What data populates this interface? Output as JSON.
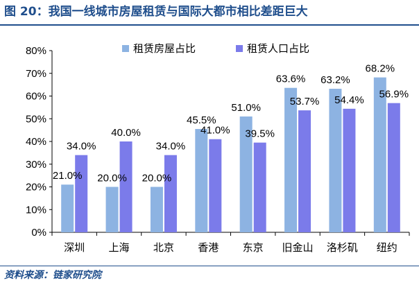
{
  "header": {
    "title": "图 20：我国一线城市房屋租赁与国际大都市相比差距巨大"
  },
  "footer": {
    "source": "资料来源：链家研究院"
  },
  "colors": {
    "accent": "#1f4e8c",
    "series1": "#8db3e2",
    "series2": "#7b7bea"
  },
  "chart_data": {
    "type": "bar",
    "title": "",
    "xlabel": "",
    "ylabel": "",
    "ylim": [
      0,
      80
    ],
    "yticks": [
      0,
      10,
      20,
      30,
      40,
      50,
      60,
      70,
      80
    ],
    "ytick_labels": [
      "0%",
      "10%",
      "20%",
      "30%",
      "40%",
      "50%",
      "60%",
      "70%",
      "80%"
    ],
    "categories": [
      "深圳",
      "上海",
      "北京",
      "香港",
      "东京",
      "旧金山",
      "洛杉矶",
      "纽约"
    ],
    "series": [
      {
        "name": "租赁房屋占比",
        "values": [
          21.0,
          20.0,
          20.0,
          45.5,
          51.0,
          63.6,
          63.2,
          68.2
        ],
        "labels": [
          "21.0%",
          "20.0%",
          "20.0%",
          "45.5%",
          "51.0%",
          "63.6%",
          "63.2%",
          "68.2%"
        ]
      },
      {
        "name": "租赁人口占比",
        "values": [
          34.0,
          40.0,
          34.0,
          41.0,
          39.5,
          53.7,
          54.4,
          56.9
        ],
        "labels": [
          "34.0%",
          "40.0%",
          "34.0%",
          "41.0%",
          "39.5%",
          "53.7%",
          "54.4%",
          "56.9%"
        ]
      }
    ],
    "legend_position": "top-center",
    "grid": false
  }
}
